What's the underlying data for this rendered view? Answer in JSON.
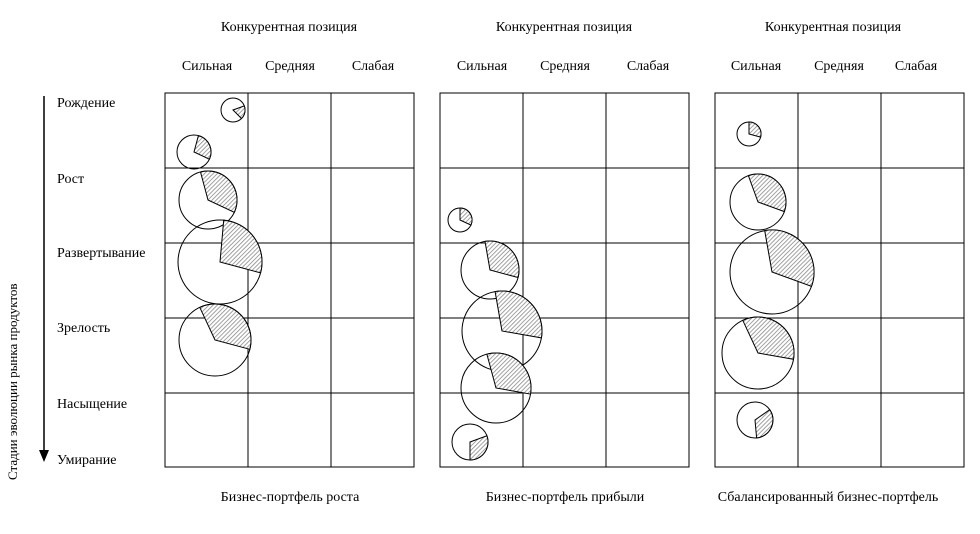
{
  "axis_title": "Стадии эволюции рынка продуктов",
  "stages": [
    "Рождение",
    "Рост",
    "Развертывание",
    "Зрелость",
    "Насыщение",
    "Умирание"
  ],
  "panels": [
    {
      "heading": "Конкурентная позиция",
      "columns": [
        "Сильная",
        "Средняя",
        "Слабая"
      ],
      "caption": "Бизнес-портфель роста",
      "bubbles": [
        {
          "name": "product-1",
          "size": "small",
          "stage_row": 1,
          "position": "Сильная/Средняя border"
        },
        {
          "name": "product-2",
          "size": "small",
          "stage_row": 1,
          "position": "Сильная"
        },
        {
          "name": "product-3",
          "size": "medium",
          "stage_row": 2,
          "position": "Сильная"
        },
        {
          "name": "product-4",
          "size": "large",
          "stage_row": 3,
          "position": "Сильная"
        },
        {
          "name": "product-5",
          "size": "medium",
          "stage_row": 4,
          "position": "Сильная"
        }
      ]
    },
    {
      "heading": "Конкурентная позиция",
      "columns": [
        "Сильная",
        "Средняя",
        "Слабая"
      ],
      "caption": "Бизнес-портфель прибыли",
      "bubbles": [
        {
          "name": "product-1",
          "size": "small",
          "stage_row": 2,
          "position": "Сильная"
        },
        {
          "name": "product-2",
          "size": "medium",
          "stage_row": 3,
          "position": "Сильная"
        },
        {
          "name": "product-3",
          "size": "large",
          "stage_row": 4,
          "position": "Сильная"
        },
        {
          "name": "product-4",
          "size": "medium",
          "stage_row": 4,
          "position": "Сильная"
        },
        {
          "name": "product-5",
          "size": "small",
          "stage_row": 5,
          "position": "Сильная"
        }
      ]
    },
    {
      "heading": "Конкурентная позиция",
      "columns": [
        "Сильная",
        "Средняя",
        "Слабая"
      ],
      "caption": "Сбалансированный бизнес-портфель",
      "bubbles": [
        {
          "name": "product-1",
          "size": "small",
          "stage_row": 1,
          "position": "Сильная"
        },
        {
          "name": "product-2",
          "size": "medium",
          "stage_row": 2,
          "position": "Сильная"
        },
        {
          "name": "product-3",
          "size": "large",
          "stage_row": 3,
          "position": "Сильная"
        },
        {
          "name": "product-4",
          "size": "medium",
          "stage_row": 4,
          "position": "Сильная"
        },
        {
          "name": "product-5",
          "size": "small",
          "stage_row": 5,
          "position": "Сильная"
        }
      ]
    }
  ],
  "colors": {
    "line": "#000000",
    "hatch": "#9a9a9a",
    "background": "#ffffff"
  }
}
